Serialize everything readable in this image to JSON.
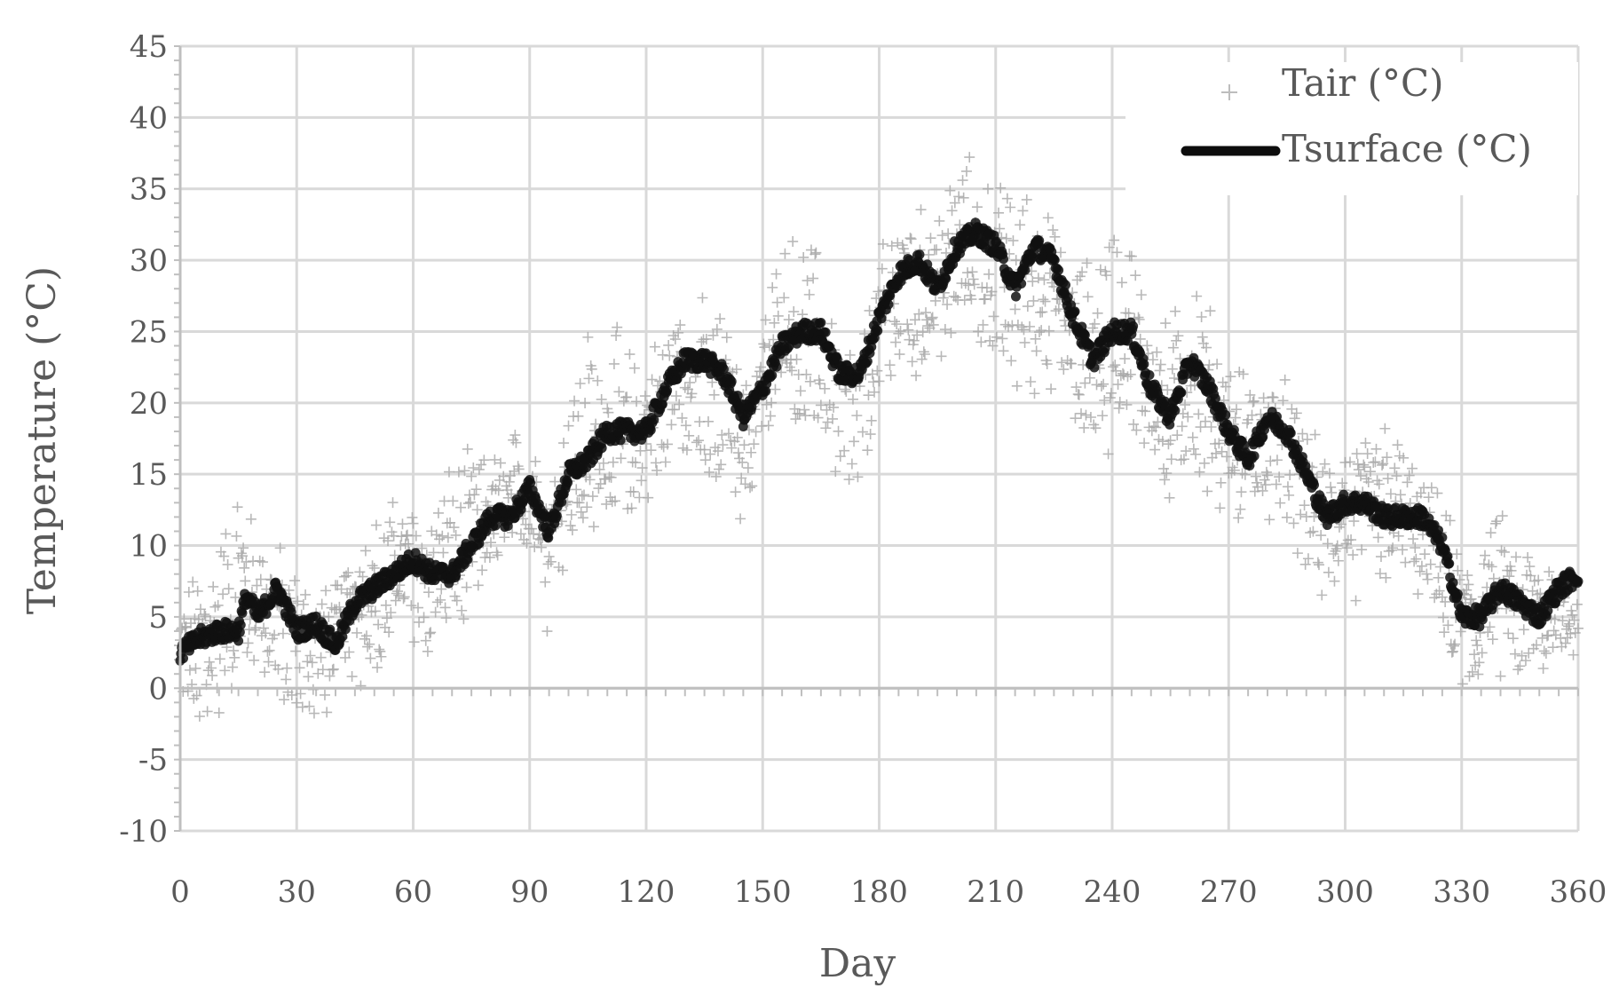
{
  "chart_data": {
    "type": "scatter",
    "title": "",
    "xlabel": "Day",
    "ylabel": "Temperature (°C)",
    "xlim": [
      0,
      360
    ],
    "ylim": [
      -10,
      45
    ],
    "x_ticks": [
      0,
      30,
      60,
      90,
      120,
      150,
      180,
      210,
      240,
      270,
      300,
      330,
      360
    ],
    "y_ticks": [
      -10,
      -5,
      0,
      5,
      10,
      15,
      20,
      25,
      30,
      35,
      40,
      45
    ],
    "x_tick_labels": [
      "0",
      "30",
      "60",
      "90",
      "120",
      "150",
      "180",
      "210",
      "240",
      "270",
      "300",
      "330",
      "360"
    ],
    "y_tick_labels": [
      "-10",
      "-5",
      "0",
      "5",
      "10",
      "15",
      "20",
      "25",
      "30",
      "35",
      "40",
      "45"
    ],
    "grid": true,
    "legend_position": "top-right",
    "series": [
      {
        "name": "Tair (°C)",
        "marker": "plus",
        "color": "#a6a6a6",
        "x": [
          0,
          5,
          10,
          15,
          20,
          25,
          30,
          35,
          40,
          45,
          50,
          55,
          60,
          65,
          70,
          75,
          80,
          85,
          90,
          95,
          100,
          105,
          110,
          115,
          120,
          125,
          130,
          135,
          140,
          145,
          150,
          155,
          160,
          165,
          170,
          175,
          180,
          185,
          190,
          195,
          200,
          205,
          210,
          215,
          220,
          225,
          230,
          235,
          240,
          245,
          250,
          255,
          260,
          265,
          270,
          275,
          280,
          285,
          290,
          295,
          300,
          305,
          310,
          315,
          320,
          325,
          330,
          335,
          340,
          345,
          350,
          355,
          360
        ],
        "mean": [
          2,
          3,
          4,
          7,
          6,
          5,
          3,
          3,
          3,
          6,
          6,
          8,
          8,
          8,
          9,
          11,
          12,
          12,
          14,
          9,
          15,
          16,
          16,
          16,
          18,
          20,
          22,
          20,
          20,
          16,
          21,
          24,
          23,
          23,
          19,
          19,
          24,
          28,
          27,
          28,
          30,
          30,
          28,
          28,
          28,
          27,
          24,
          22,
          23,
          24,
          20,
          19,
          22,
          19,
          17,
          16,
          17,
          16,
          14,
          11,
          13,
          12,
          12,
          12,
          10,
          9,
          4,
          6,
          6,
          5,
          5,
          5,
          5
        ],
        "min": [
          -4,
          -3,
          -2,
          -1,
          0,
          -1,
          -4,
          -3,
          -3,
          0,
          -1,
          4,
          2,
          1,
          3,
          6,
          7,
          6,
          9,
          1,
          9,
          10,
          10,
          10,
          12,
          14,
          15,
          14,
          12,
          10,
          15,
          18,
          16,
          17,
          13,
          13,
          18,
          22,
          20,
          22,
          24,
          25,
          19,
          20,
          20,
          19,
          17,
          15,
          16,
          17,
          13,
          12,
          15,
          12,
          12,
          11,
          11,
          9,
          7,
          5,
          8,
          4,
          6,
          7,
          6,
          3,
          -2,
          0,
          0,
          -1,
          0,
          2,
          2
        ],
        "max": [
          8,
          9,
          12,
          16,
          12,
          11,
          9,
          8,
          8,
          12,
          13,
          14,
          14,
          14,
          17,
          17,
          17,
          18,
          23,
          16,
          22,
          27,
          27,
          25,
          24,
          27,
          28,
          28,
          27,
          22,
          27,
          33,
          33,
          32,
          26,
          25,
          31,
          36,
          34,
          36,
          38,
          38,
          36,
          37,
          36,
          33,
          30,
          32,
          36,
          33,
          28,
          26,
          33,
          28,
          24,
          23,
          24,
          22,
          19,
          17,
          19,
          18,
          21,
          18,
          15,
          14,
          10,
          12,
          13,
          11,
          11,
          10,
          9
        ]
      },
      {
        "name": "Tsurface (°C)",
        "marker": "thick-line",
        "color": "#0d0d0d",
        "x": [
          0,
          5,
          10,
          15,
          17,
          20,
          25,
          30,
          35,
          40,
          45,
          50,
          55,
          60,
          65,
          70,
          75,
          80,
          85,
          90,
          95,
          100,
          105,
          110,
          115,
          120,
          125,
          130,
          135,
          140,
          145,
          150,
          155,
          160,
          165,
          170,
          175,
          180,
          185,
          190,
          195,
          200,
          205,
          210,
          215,
          220,
          225,
          230,
          235,
          240,
          245,
          250,
          255,
          260,
          265,
          270,
          275,
          280,
          285,
          290,
          295,
          300,
          305,
          310,
          315,
          320,
          325,
          330,
          335,
          340,
          345,
          350,
          355,
          360
        ],
        "values": [
          2.5,
          3.5,
          4,
          4,
          6.5,
          5,
          7,
          4,
          4.5,
          3,
          6,
          7,
          8,
          9,
          8,
          8,
          10,
          12,
          12,
          14,
          11,
          15,
          16,
          18,
          18,
          18,
          21,
          23,
          23,
          22,
          19,
          21,
          24,
          25,
          25,
          22,
          22,
          26,
          29,
          30,
          28,
          31,
          32,
          31,
          28,
          31,
          30,
          26,
          23,
          25,
          25,
          21,
          19,
          23,
          21,
          18,
          16,
          19,
          18,
          15,
          12,
          13,
          13,
          12,
          12,
          12,
          10,
          5,
          5,
          7,
          6,
          5,
          7,
          8
        ]
      }
    ]
  }
}
